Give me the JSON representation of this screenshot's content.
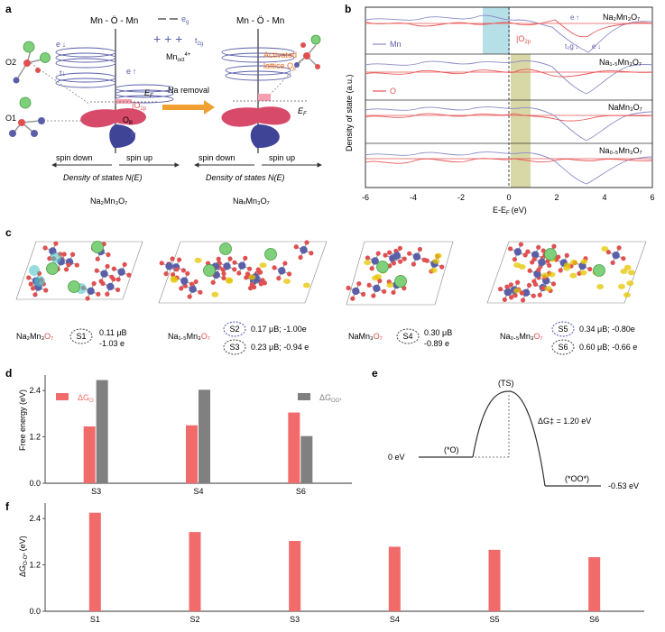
{
  "panels": {
    "a": {
      "label": "a",
      "orbital_top": "Mn - Ö - Mn",
      "eg_legend": "e",
      "eg_sub": "g",
      "t2g_legend": "t",
      "t2g_sub": "2g",
      "mn_label": "Mn",
      "mn_sub": "oct",
      "mn_sup": "4+",
      "eg_down": "e ↓",
      "t2g_down": "t↓",
      "eg_up": "e ↑",
      "t2g_up": "t↑",
      "ef": "E",
      "o2p": "|O",
      "o2p_sub": "2p",
      "ob": "O",
      "ob_sub": "B",
      "o1": "O1",
      "o2": "O2",
      "na_removal": "Na removal",
      "activated_line1": "Activated",
      "activated_line2": "lattice O",
      "spin_down": "spin down",
      "spin_up": "spin up",
      "dos_label": "Density of states N(E)",
      "left_compound": "Na₂Mn₃O₇",
      "right_compound": "NaₓMn₃O₇"
    },
    "b": {
      "label": "b",
      "ylabel": "Density of state (a.u.)",
      "xlabel": "E-E",
      "xlabel_sub": "F",
      "xlabel_unit": "(eV)",
      "legend_mn": "Mn",
      "legend_o": "O",
      "o2p": "|O",
      "o2p_sub": "2p",
      "eg_up": "e ↑",
      "t2g_up": "t₂g ↓",
      "eg_down2": "e ↓",
      "rows": [
        "Na₂Mn₃O₇",
        "Na₁.₅Mn₃O₇",
        "NaMn₃O₇",
        "Na₀.₅Mn₃O₇"
      ],
      "xticks": [
        "-6",
        "-4",
        "-2",
        "0",
        "2",
        "4",
        "6"
      ]
    },
    "c": {
      "label": "c",
      "items": [
        {
          "compound_pre": "Na₂Mn₃",
          "compound_o": "O₇",
          "site": "S1",
          "line1": "0.11 μB",
          "line2": "-1.03 e"
        },
        {
          "compound_pre": "Na₁.₅Mn₃",
          "compound_o": "O₇",
          "site": "S2",
          "line1": "0.17 μB; -1.00e",
          "site2": "S3",
          "line2": "0.23 μB; -0.94 e"
        },
        {
          "compound_pre": "NaMn₃",
          "compound_o": "O₇",
          "site": "S4",
          "line1": "0.30 μB",
          "line2": "-0.89 e"
        },
        {
          "compound_pre": "Na₀.₅Mn₃",
          "compound_o": "O₇",
          "site": "S5",
          "line1": "0.34 μB; -0.80e",
          "site2": "S6",
          "line2": "0.60 μB; -0.66 e"
        }
      ]
    },
    "e": {
      "label": "e",
      "ts": "(TS)",
      "barrier": "ΔG‡ = 1.20 eV",
      "start_energy": "0 eV",
      "start_state": "(*O)",
      "end_state": "(*OO*)",
      "end_energy": "-0.53 eV"
    }
  },
  "colors": {
    "mn_blue": "#5a5fa8",
    "o_red": "#e05050",
    "bar_red": "#f26b6b",
    "bar_grey": "#808080",
    "na_green": "#7fd07a",
    "orange": "#f0a030",
    "cyan_band": "#b6dfe8",
    "olive_band": "#d8d8a6"
  },
  "chart_data": [
    {
      "panel": "d",
      "label": "d",
      "type": "bar",
      "ylabel": "Free energy (eV)",
      "categories": [
        "S3",
        "S4",
        "S6"
      ],
      "series": [
        {
          "name": "ΔG",
          "name_sub": "O",
          "values": [
            1.47,
            1.5,
            1.83
          ]
        },
        {
          "name": "ΔG",
          "name_sub": "OO*",
          "values": [
            2.67,
            2.42,
            1.22
          ]
        }
      ],
      "ylim": [
        0,
        2.8
      ],
      "yticks": [
        "0.0",
        "1.2",
        "2.4"
      ]
    },
    {
      "panel": "f",
      "label": "f",
      "type": "bar",
      "ylabel": "ΔG",
      "ylabel_sub": "O-O*",
      "ylabel_unit": "(eV)",
      "categories": [
        "S1",
        "S2",
        "S3",
        "S4",
        "S5",
        "S6"
      ],
      "series": [
        {
          "name": "ΔG O-O*",
          "values": [
            2.55,
            2.05,
            1.82,
            1.67,
            1.59,
            1.4
          ]
        }
      ],
      "ylim": [
        0,
        2.8
      ],
      "yticks": [
        "0.0",
        "1.2",
        "2.4"
      ]
    }
  ]
}
